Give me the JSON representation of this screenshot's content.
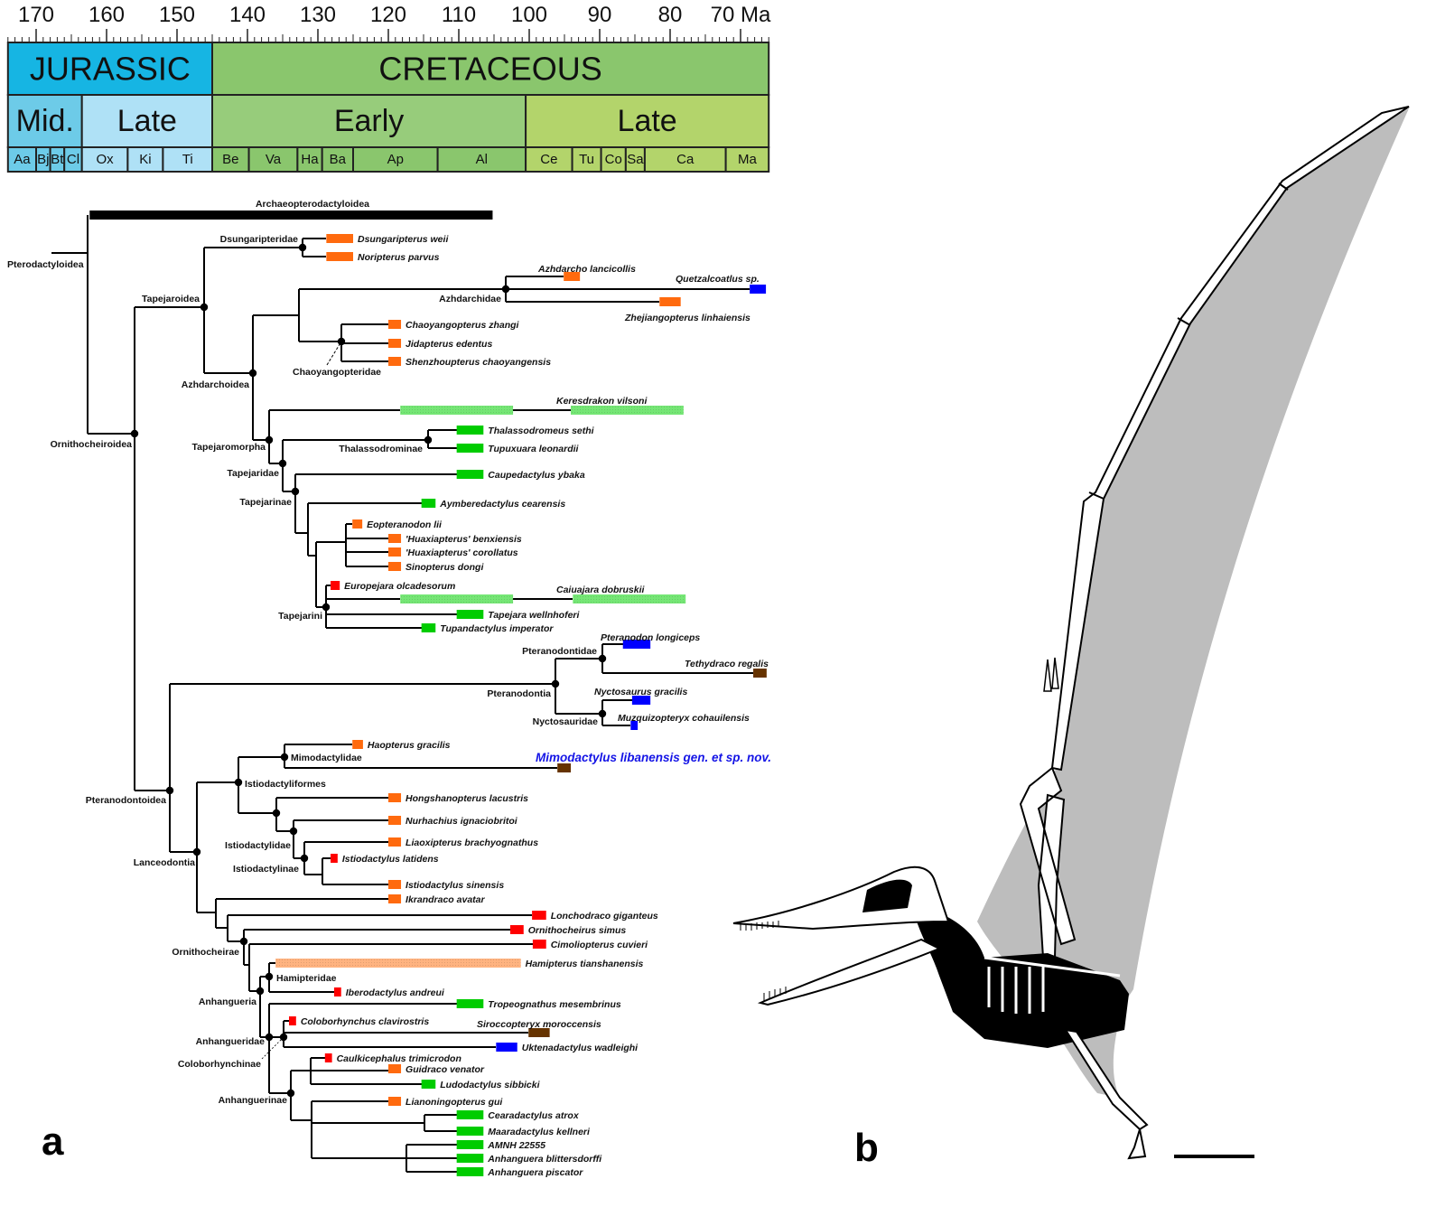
{
  "timescale": {
    "unit_label": "Ma",
    "major_ticks": [
      170,
      160,
      150,
      140,
      130,
      120,
      110,
      100,
      90,
      80,
      70
    ],
    "range": [
      174,
      66
    ],
    "periods": [
      {
        "name": "JURASSIC",
        "range": [
          174,
          145
        ],
        "color": "#16b5e3"
      },
      {
        "name": "CRETACEOUS",
        "range": [
          145,
          66
        ],
        "color": "#8ac66d"
      }
    ],
    "epochs": [
      {
        "name": "Mid.",
        "range": [
          174,
          163.5
        ],
        "color": "#6dcbe8"
      },
      {
        "name": "Late",
        "range": [
          163.5,
          145
        ],
        "color": "#afe1f6"
      },
      {
        "name": "Early",
        "range": [
          145,
          100.5
        ],
        "color": "#97cc7b"
      },
      {
        "name": "Late",
        "range": [
          100.5,
          66
        ],
        "color": "#b3d46b"
      }
    ],
    "stages": [
      {
        "name": "Aa",
        "range": [
          174,
          170
        ],
        "color": "#6dcbe8"
      },
      {
        "name": "Bj",
        "range": [
          170,
          168
        ],
        "color": "#6dcbe8"
      },
      {
        "name": "Bt",
        "range": [
          168,
          166
        ],
        "color": "#6dcbe8"
      },
      {
        "name": "Cl",
        "range": [
          166,
          163.5
        ],
        "color": "#6dcbe8"
      },
      {
        "name": "Ox",
        "range": [
          163.5,
          157
        ],
        "color": "#afe1f6"
      },
      {
        "name": "Ki",
        "range": [
          157,
          152
        ],
        "color": "#afe1f6"
      },
      {
        "name": "Ti",
        "range": [
          152,
          145
        ],
        "color": "#afe1f6"
      },
      {
        "name": "Be",
        "range": [
          145,
          139.8
        ],
        "color": "#8ac66d"
      },
      {
        "name": "Va",
        "range": [
          139.8,
          132.9
        ],
        "color": "#8ac66d"
      },
      {
        "name": "Ha",
        "range": [
          132.9,
          129.4
        ],
        "color": "#8ac66d"
      },
      {
        "name": "Ba",
        "range": [
          129.4,
          125
        ],
        "color": "#8ac66d"
      },
      {
        "name": "Ap",
        "range": [
          125,
          113
        ],
        "color": "#8ac66d"
      },
      {
        "name": "Al",
        "range": [
          113,
          100.5
        ],
        "color": "#8ac66d"
      },
      {
        "name": "Ce",
        "range": [
          100.5,
          93.9
        ],
        "color": "#b3d46b"
      },
      {
        "name": "Tu",
        "range": [
          93.9,
          89.8
        ],
        "color": "#b3d46b"
      },
      {
        "name": "Co",
        "range": [
          89.8,
          86.3
        ],
        "color": "#b3d46b"
      },
      {
        "name": "Sa",
        "range": [
          86.3,
          83.6
        ],
        "color": "#b3d46b"
      },
      {
        "name": "Ca",
        "range": [
          83.6,
          72.1
        ],
        "color": "#b3d46b"
      },
      {
        "name": "Ma",
        "range": [
          72.1,
          66
        ],
        "color": "#b3d46b"
      }
    ]
  },
  "colors": {
    "orange": "#ff6a0e",
    "red": "#ff0000",
    "green": "#00cc00",
    "blue": "#0000ff",
    "brown": "#663300",
    "green_hatched": "#47dd47",
    "orange_hatched": "#ff9a55",
    "black": "#000000",
    "new_taxon_text": "#1414e6"
  },
  "archaeopterodactyloidea": {
    "name": "Archaeopterodactyloidea",
    "range": [
      162.4,
      105.2
    ]
  },
  "clades": {
    "pterodactyloidea": "Pterodactyloidea",
    "dsungaripteridae": "Dsungaripteridae",
    "tapejaroidea": "Tapejaroidea",
    "azhdarchidae": "Azhdarchidae",
    "chaoyangopteridae": "Chaoyangopteridae",
    "azhdarchoidea": "Azhdarchoidea",
    "ornithocheiroidea": "Ornithocheiroidea",
    "thalassodrominae": "Thalassodrominae",
    "tapejaromorpha": "Tapejaromorpha",
    "tapejaridae": "Tapejaridae",
    "tapejarinae": "Tapejarinae",
    "tapejarini": "Tapejarini",
    "pteranodontidae": "Pteranodontidae",
    "pteranodontia": "Pteranodontia",
    "nyctosauridae": "Nyctosauridae",
    "mimodactylidae": "Mimodactylidae",
    "istiodactyliformes": "Istiodactyliformes",
    "pteranodontoidea": "Pteranodontoidea",
    "istiodactylidae": "Istiodactylidae",
    "istiodactylinae": "Istiodactylinae",
    "lanceodontia": "Lanceodontia",
    "ornithocheirae": "Ornithocheirae",
    "hamipteridae": "Hamipteridae",
    "anhangueria": "Anhangueria",
    "anhangueridae": "Anhangueridae",
    "coloborhynchinae": "Coloborhynchinae",
    "anhanguerinae": "Anhanguerinae"
  },
  "taxa": [
    {
      "name": "Dsungaripterus weii",
      "color": "orange",
      "ranges": [
        [
          128.8,
          125.0
        ]
      ]
    },
    {
      "name": "Noripterus parvus",
      "color": "orange",
      "ranges": [
        [
          128.8,
          125.0
        ]
      ]
    },
    {
      "name": "Azhdarcho lancicollis",
      "color": "orange",
      "ranges": [
        [
          95.1,
          92.8
        ]
      ]
    },
    {
      "name": "Quetzalcoatlus sp.",
      "color": "blue",
      "ranges": [
        [
          68.7,
          66.4
        ]
      ]
    },
    {
      "name": "Zhejiangopterus linhaiensis",
      "color": "orange",
      "ranges": [
        [
          81.5,
          78.5
        ]
      ]
    },
    {
      "name": "Chaoyangopterus zhangi",
      "color": "orange",
      "ranges": [
        [
          120.0,
          118.2
        ]
      ]
    },
    {
      "name": "Jidapterus edentus",
      "color": "orange",
      "ranges": [
        [
          120.0,
          118.2
        ]
      ]
    },
    {
      "name": "Shenzhoupterus chaoyangensis",
      "color": "orange",
      "ranges": [
        [
          120.0,
          118.2
        ]
      ]
    },
    {
      "name": "Keresdrakon vilsoni",
      "color": "green_hatched",
      "ranges": [
        [
          118.3,
          102.3
        ],
        [
          94.1,
          78.1
        ]
      ]
    },
    {
      "name": "Thalassodromeus sethi",
      "color": "green",
      "ranges": [
        [
          110.3,
          106.5
        ]
      ]
    },
    {
      "name": "Tupuxuara leonardii",
      "color": "green",
      "ranges": [
        [
          110.3,
          106.5
        ]
      ]
    },
    {
      "name": "Caupedactylus ybaka",
      "color": "green",
      "ranges": [
        [
          110.3,
          106.5
        ]
      ]
    },
    {
      "name": "Aymberedactylus cearensis",
      "color": "green",
      "ranges": [
        [
          115.3,
          113.3
        ]
      ]
    },
    {
      "name": "Eopteranodon lii",
      "color": "orange",
      "ranges": [
        [
          125.1,
          123.7
        ]
      ]
    },
    {
      "name": "'Huaxiapterus' benxiensis",
      "color": "orange",
      "ranges": [
        [
          120.0,
          118.2
        ]
      ]
    },
    {
      "name": "'Huaxiapterus' corollatus",
      "color": "orange",
      "ranges": [
        [
          120.0,
          118.2
        ]
      ]
    },
    {
      "name": "Sinopterus dongi",
      "color": "orange",
      "ranges": [
        [
          120.0,
          118.2
        ]
      ]
    },
    {
      "name": "Europejara olcadesorum",
      "color": "red",
      "ranges": [
        [
          128.2,
          126.9
        ]
      ]
    },
    {
      "name": "Caiuajara dobruskii",
      "color": "green_hatched",
      "ranges": [
        [
          118.3,
          102.3
        ],
        [
          93.8,
          77.8
        ]
      ]
    },
    {
      "name": "Tapejara wellnhoferi",
      "color": "green",
      "ranges": [
        [
          110.3,
          106.5
        ]
      ]
    },
    {
      "name": "Tupandactylus imperator",
      "color": "green",
      "ranges": [
        [
          115.3,
          113.3
        ]
      ]
    },
    {
      "name": "Pteranodon longiceps",
      "color": "blue",
      "ranges": [
        [
          86.7,
          82.8
        ]
      ]
    },
    {
      "name": "Tethydraco regalis",
      "color": "brown",
      "ranges": [
        [
          68.2,
          66.3
        ]
      ]
    },
    {
      "name": "Nyctosaurus gracilis",
      "color": "blue",
      "ranges": [
        [
          85.4,
          82.8
        ]
      ]
    },
    {
      "name": "Muzquizopteryx cohauilensis",
      "color": "blue",
      "ranges": [
        [
          85.6,
          84.6
        ]
      ]
    },
    {
      "name": "Haopterus gracilis",
      "color": "orange",
      "ranges": [
        [
          125.1,
          123.6
        ]
      ]
    },
    {
      "name": "Mimodactylus libanensis gen. et sp. nov.",
      "color": "brown",
      "ranges": [
        [
          96.0,
          94.1
        ]
      ]
    },
    {
      "name": "Hongshanopterus lacustris",
      "color": "orange",
      "ranges": [
        [
          120.0,
          118.2
        ]
      ]
    },
    {
      "name": "Nurhachius ignaciobritoi",
      "color": "orange",
      "ranges": [
        [
          120.0,
          118.2
        ]
      ]
    },
    {
      "name": "Liaoxipterus brachyognathus",
      "color": "orange",
      "ranges": [
        [
          120.0,
          118.2
        ]
      ]
    },
    {
      "name": "Istiodactylus latidens",
      "color": "red",
      "ranges": [
        [
          128.2,
          127.2
        ]
      ]
    },
    {
      "name": "Istiodactylus sinensis",
      "color": "orange",
      "ranges": [
        [
          120.0,
          118.2
        ]
      ]
    },
    {
      "name": "Ikrandraco avatar",
      "color": "orange",
      "ranges": [
        [
          120.0,
          118.2
        ]
      ]
    },
    {
      "name": "Lonchodraco giganteus",
      "color": "red",
      "ranges": [
        [
          99.6,
          97.6
        ]
      ]
    },
    {
      "name": "Ornithocheirus simus",
      "color": "red",
      "ranges": [
        [
          102.7,
          100.8
        ]
      ]
    },
    {
      "name": "Cimoliopterus cuvieri",
      "color": "red",
      "ranges": [
        [
          99.5,
          97.6
        ]
      ]
    },
    {
      "name": "Hamipterus tianshanensis",
      "color": "orange_hatched",
      "ranges": [
        [
          136.0,
          101.2
        ]
      ]
    },
    {
      "name": "Iberodactylus andreui",
      "color": "red",
      "ranges": [
        [
          127.7,
          126.7
        ]
      ]
    },
    {
      "name": "Tropeognathus mesembrinus",
      "color": "green",
      "ranges": [
        [
          110.3,
          106.5
        ]
      ]
    },
    {
      "name": "Coloborhynchus clavirostris",
      "color": "red",
      "ranges": [
        [
          134.1,
          133.1
        ]
      ]
    },
    {
      "name": "Siroccopteryx moroccensis",
      "color": "brown",
      "ranges": [
        [
          100.1,
          97.1
        ]
      ]
    },
    {
      "name": "Uktenadactylus wadleighi",
      "color": "blue",
      "ranges": [
        [
          104.7,
          101.7
        ]
      ]
    },
    {
      "name": "Caulkicephalus trimicrodon",
      "color": "red",
      "ranges": [
        [
          129.0,
          128.0
        ]
      ]
    },
    {
      "name": "Guidraco venator",
      "color": "orange",
      "ranges": [
        [
          120.0,
          118.2
        ]
      ]
    },
    {
      "name": "Ludodactylus sibbicki",
      "color": "green",
      "ranges": [
        [
          115.3,
          113.3
        ]
      ]
    },
    {
      "name": "Lianoningopterus gui",
      "color": "orange",
      "ranges": [
        [
          120.0,
          118.2
        ]
      ]
    },
    {
      "name": "Cearadactylus atrox",
      "color": "green",
      "ranges": [
        [
          110.3,
          106.5
        ]
      ]
    },
    {
      "name": "Maaradactylus kellneri",
      "color": "green",
      "ranges": [
        [
          110.3,
          106.5
        ]
      ]
    },
    {
      "name": "AMNH 22555",
      "color": "green",
      "ranges": [
        [
          110.3,
          106.5
        ]
      ]
    },
    {
      "name": "Anhanguera blittersdorffi",
      "color": "green",
      "ranges": [
        [
          110.3,
          106.5
        ]
      ]
    },
    {
      "name": "Anhanguera piscator",
      "color": "green",
      "ranges": [
        [
          110.3,
          106.5
        ]
      ]
    }
  ],
  "panels": {
    "a": "a",
    "b": "b"
  }
}
